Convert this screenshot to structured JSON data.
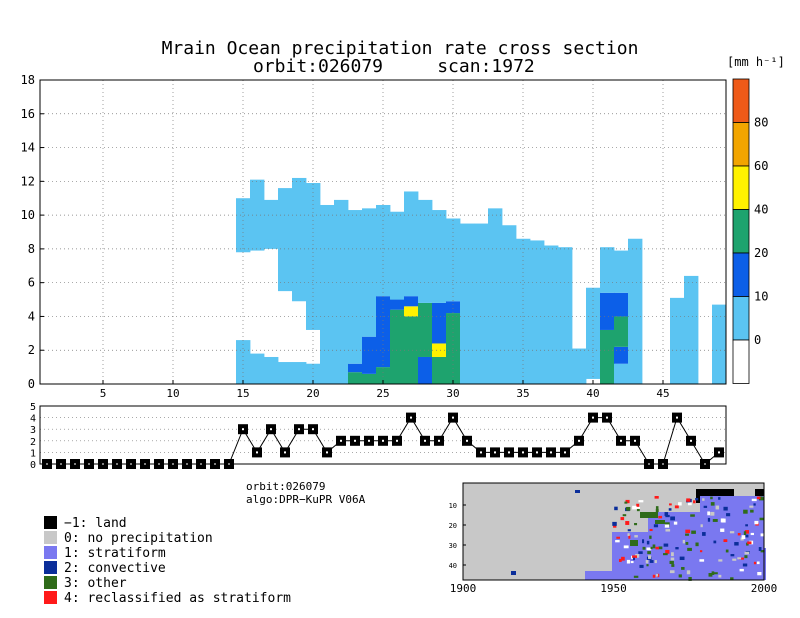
{
  "title": {
    "line1": "Mrain Ocean precipitation rate cross section",
    "line2_orbit": "orbit:026079",
    "line2_scan": "scan:1972"
  },
  "colorbar": {
    "unit": "[mm h⁻¹]",
    "ticks": [
      "0",
      "10",
      "20",
      "40",
      "60",
      "80"
    ],
    "colors": [
      "#ffffff",
      "#5bc4f2",
      "#0c5fe8",
      "#1ea36e",
      "#fff200",
      "#f2a500",
      "#ee5a18"
    ]
  },
  "info": {
    "orbit": "orbit:026079",
    "algo": "algo:DPR−KuPR V06A"
  },
  "legend": [
    {
      "label": "−1: land",
      "color": "#000000"
    },
    {
      "label": "0: no precipitation",
      "color": "#c8c8c8"
    },
    {
      "label": "1: stratiform",
      "color": "#7a78f0"
    },
    {
      "label": "2: convective",
      "color": "#0b2e9a"
    },
    {
      "label": "3: other",
      "color": "#2f6b1a"
    },
    {
      "label": "4: reclassified as stratiform",
      "color": "#ff1a1a"
    }
  ],
  "chart_data": [
    {
      "type": "heatmap",
      "name": "precipitation rate cross section",
      "xlim": [
        0.5,
        49.5
      ],
      "ylim": [
        0,
        18
      ],
      "x_ticks": [
        5,
        10,
        15,
        20,
        25,
        30,
        35,
        40,
        45
      ],
      "y_ticks": [
        0,
        2,
        4,
        6,
        8,
        10,
        12,
        14,
        16,
        18
      ],
      "levels": [
        0,
        10,
        20,
        40,
        60,
        80
      ],
      "columns": [
        {
          "x": 15,
          "top": 11.0,
          "bins": [
            [
              0,
              2.6,
              5
            ],
            [
              7.8,
              11.0,
              5
            ]
          ]
        },
        {
          "x": 16,
          "top": 12.1,
          "bins": [
            [
              0,
              1.8,
              5
            ],
            [
              7.9,
              12.1,
              5
            ]
          ]
        },
        {
          "x": 17,
          "top": 10.9,
          "bins": [
            [
              0,
              1.6,
              5
            ],
            [
              8.0,
              10.9,
              5
            ]
          ]
        },
        {
          "x": 18,
          "top": 11.6,
          "bins": [
            [
              0,
              1.3,
              5
            ],
            [
              5.5,
              11.6,
              5
            ]
          ]
        },
        {
          "x": 19,
          "top": 12.2,
          "bins": [
            [
              0,
              1.3,
              5
            ],
            [
              4.9,
              12.2,
              5
            ]
          ]
        },
        {
          "x": 20,
          "top": 11.9,
          "bins": [
            [
              0,
              1.2,
              5
            ],
            [
              3.2,
              11.9,
              5
            ]
          ]
        },
        {
          "x": 21,
          "top": 10.6,
          "bins": [
            [
              0,
              10.6,
              5
            ]
          ]
        },
        {
          "x": 22,
          "top": 10.9,
          "bins": [
            [
              0,
              10.9,
              5
            ]
          ]
        },
        {
          "x": 23,
          "top": 10.3,
          "bins": [
            [
              0,
              0.7,
              25
            ],
            [
              0.7,
              1.2,
              15
            ],
            [
              1.2,
              10.3,
              5
            ]
          ]
        },
        {
          "x": 24,
          "top": 10.4,
          "bins": [
            [
              0,
              0.6,
              25
            ],
            [
              0.6,
              2.8,
              15
            ],
            [
              2.8,
              10.4,
              5
            ]
          ]
        },
        {
          "x": 25,
          "top": 10.6,
          "bins": [
            [
              0,
              1.0,
              25
            ],
            [
              1.0,
              5.2,
              15
            ],
            [
              5.2,
              10.6,
              5
            ]
          ]
        },
        {
          "x": 26,
          "top": 10.2,
          "bins": [
            [
              0,
              4.4,
              25
            ],
            [
              4.4,
              5.0,
              15
            ],
            [
              5.0,
              10.2,
              5
            ]
          ]
        },
        {
          "x": 27,
          "top": 11.4,
          "bins": [
            [
              0,
              4.0,
              25
            ],
            [
              4.0,
              4.6,
              50
            ],
            [
              4.6,
              5.2,
              15
            ],
            [
              5.2,
              11.4,
              5
            ]
          ]
        },
        {
          "x": 28,
          "top": 10.9,
          "bins": [
            [
              0,
              1.6,
              15
            ],
            [
              1.6,
              4.8,
              25
            ],
            [
              4.8,
              10.9,
              5
            ]
          ]
        },
        {
          "x": 29,
          "top": 10.3,
          "bins": [
            [
              0,
              1.6,
              25
            ],
            [
              1.6,
              2.4,
              50
            ],
            [
              2.4,
              4.8,
              15
            ],
            [
              4.8,
              10.3,
              5
            ]
          ]
        },
        {
          "x": 30,
          "top": 9.8,
          "bins": [
            [
              0,
              4.2,
              25
            ],
            [
              4.2,
              4.9,
              15
            ],
            [
              4.9,
              9.8,
              5
            ]
          ]
        },
        {
          "x": 31,
          "top": 9.5,
          "bins": [
            [
              0,
              9.5,
              5
            ]
          ]
        },
        {
          "x": 32,
          "top": 9.5,
          "bins": [
            [
              0,
              9.5,
              5
            ]
          ]
        },
        {
          "x": 33,
          "top": 10.4,
          "bins": [
            [
              0,
              10.4,
              5
            ]
          ]
        },
        {
          "x": 34,
          "top": 9.4,
          "bins": [
            [
              0,
              9.4,
              5
            ]
          ]
        },
        {
          "x": 35,
          "top": 8.6,
          "bins": [
            [
              0,
              8.6,
              5
            ]
          ]
        },
        {
          "x": 36,
          "top": 8.5,
          "bins": [
            [
              0,
              8.5,
              5
            ]
          ]
        },
        {
          "x": 37,
          "top": 8.2,
          "bins": [
            [
              0,
              8.2,
              5
            ]
          ]
        },
        {
          "x": 38,
          "top": 8.1,
          "bins": [
            [
              0,
              8.1,
              5
            ]
          ]
        },
        {
          "x": 39,
          "top": 2.1,
          "bins": [
            [
              0,
              2.1,
              5
            ]
          ]
        },
        {
          "x": 40,
          "top": 5.7,
          "bins": [
            [
              0.3,
              5.7,
              5
            ]
          ]
        },
        {
          "x": 41,
          "top": 8.1,
          "bins": [
            [
              0,
              3.2,
              25
            ],
            [
              3.2,
              5.4,
              15
            ],
            [
              5.4,
              8.1,
              5
            ]
          ]
        },
        {
          "x": 42,
          "top": 7.9,
          "bins": [
            [
              0,
              1.2,
              5
            ],
            [
              1.2,
              2.2,
              15
            ],
            [
              2.2,
              4.0,
              25
            ],
            [
              4.0,
              5.4,
              15
            ],
            [
              5.4,
              7.9,
              5
            ]
          ]
        },
        {
          "x": 43,
          "top": 8.6,
          "bins": [
            [
              0,
              8.6,
              5
            ]
          ]
        },
        {
          "x": 46,
          "top": 5.1,
          "bins": [
            [
              0,
              5.1,
              5
            ]
          ]
        },
        {
          "x": 47,
          "top": 6.4,
          "bins": [
            [
              0,
              6.4,
              5
            ]
          ]
        },
        {
          "x": 49,
          "top": 4.7,
          "bins": [
            [
              0,
              4.7,
              5
            ]
          ]
        }
      ]
    },
    {
      "type": "line",
      "name": "precipitation type",
      "xlim": [
        0.5,
        49.5
      ],
      "ylim": [
        0,
        5
      ],
      "y_ticks": [
        0,
        1,
        2,
        3,
        4,
        5
      ],
      "x": [
        1,
        2,
        3,
        4,
        5,
        6,
        7,
        8,
        9,
        10,
        11,
        12,
        13,
        14,
        15,
        16,
        17,
        18,
        19,
        20,
        21,
        22,
        23,
        24,
        25,
        26,
        27,
        28,
        29,
        30,
        31,
        32,
        33,
        34,
        35,
        36,
        37,
        38,
        39,
        40,
        41,
        42,
        43,
        44,
        45,
        46,
        47,
        48,
        49
      ],
      "values": [
        0,
        0,
        0,
        0,
        0,
        0,
        0,
        0,
        0,
        0,
        0,
        0,
        0,
        0,
        3,
        1,
        3,
        1,
        3,
        3,
        1,
        2,
        2,
        2,
        2,
        2,
        4,
        2,
        2,
        4,
        2,
        1,
        1,
        1,
        1,
        1,
        1,
        1,
        2,
        4,
        4,
        2,
        2,
        0,
        0,
        4,
        2,
        0,
        1
      ]
    },
    {
      "type": "heatmap",
      "name": "precipitation type map",
      "xlim": [
        1900,
        2000
      ],
      "x_ticks": [
        "1900",
        "1950",
        "2000"
      ],
      "y_ticks": [
        "10",
        "20",
        "30",
        "40"
      ]
    }
  ]
}
